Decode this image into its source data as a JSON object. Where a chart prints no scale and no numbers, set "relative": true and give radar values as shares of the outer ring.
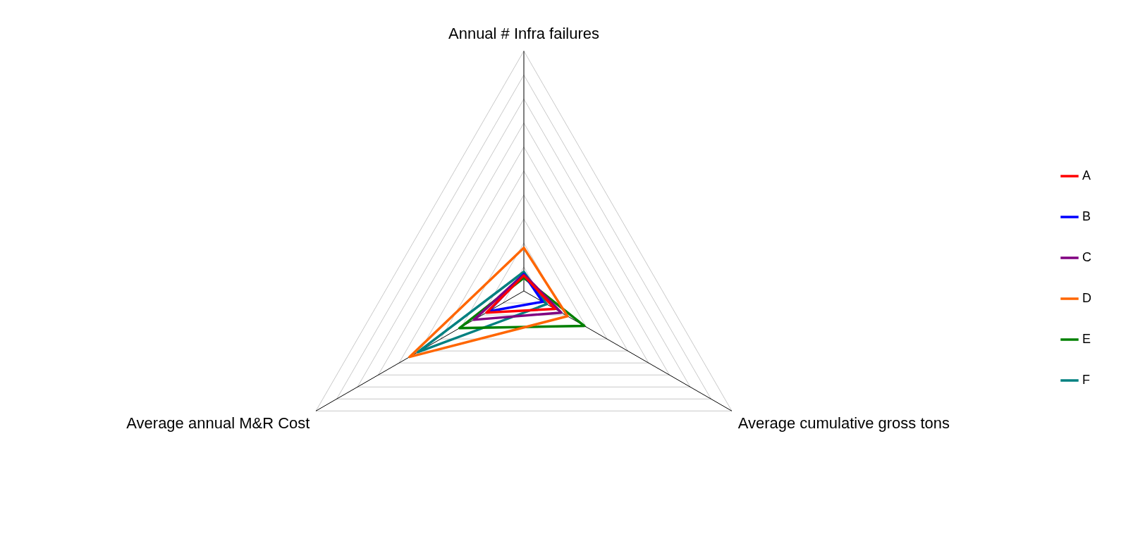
{
  "chart_data": {
    "type": "radar",
    "relative": true,
    "categories": [
      "Annual # Infra failures",
      "Average cumulative gross tons",
      "Average annual M&R Cost"
    ],
    "series": [
      {
        "name": "A",
        "color": "#ff0000",
        "values": [
          0.065,
          0.15,
          0.18
        ]
      },
      {
        "name": "B",
        "color": "#0000ff",
        "values": [
          0.07,
          0.09,
          0.17
        ]
      },
      {
        "name": "C",
        "color": "#800080",
        "values": [
          0.07,
          0.18,
          0.24
        ]
      },
      {
        "name": "D",
        "color": "#ff6600",
        "values": [
          0.18,
          0.21,
          0.55
        ]
      },
      {
        "name": "E",
        "color": "#008000",
        "values": [
          0.055,
          0.29,
          0.31
        ]
      },
      {
        "name": "F",
        "color": "#008080",
        "values": [
          0.08,
          0.11,
          0.51
        ]
      }
    ],
    "grid": true,
    "legend": "right",
    "marker": "none",
    "line_style": "solid"
  }
}
